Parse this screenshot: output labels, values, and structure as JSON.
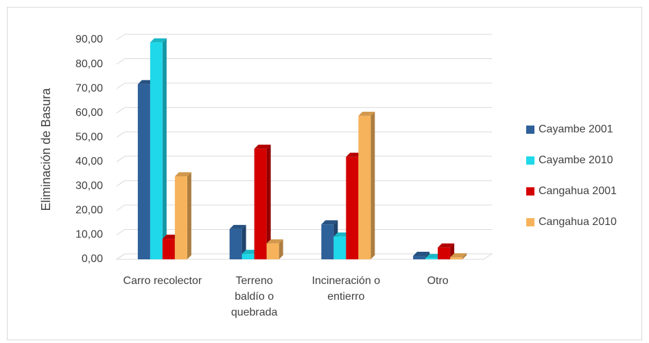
{
  "chart_data": {
    "type": "bar3d",
    "y_label": "Eliminación de Basura",
    "categories": [
      "Carro recolector",
      "Terreno baldío o quebrada",
      "Incineración o entierro",
      "Otro"
    ],
    "series": [
      {
        "name": "Cayambe 2001",
        "color": "#2e6099",
        "values": [
          71.8,
          12.4,
          14.3,
          1.4
        ]
      },
      {
        "name": "Cayambe 2010",
        "color": "#1fd8ea",
        "values": [
          88.9,
          2.2,
          9.3,
          0.5
        ]
      },
      {
        "name": "Cangahua 2001",
        "color": "#d40000",
        "values": [
          8.4,
          45.3,
          42.0,
          4.8
        ]
      },
      {
        "name": "Cangahua 2010",
        "color": "#f7b35b",
        "values": [
          34.0,
          6.5,
          58.8,
          0.8
        ]
      }
    ],
    "ylim": [
      0,
      90
    ],
    "yticks": [
      {
        "value": 0,
        "label": "0,00"
      },
      {
        "value": 10,
        "label": "10,00"
      },
      {
        "value": 20,
        "label": "20,00"
      },
      {
        "value": 30,
        "label": "30,00"
      },
      {
        "value": 40,
        "label": "40,00"
      },
      {
        "value": 50,
        "label": "50,00"
      },
      {
        "value": 60,
        "label": "60,00"
      },
      {
        "value": 70,
        "label": "70,00"
      },
      {
        "value": 80,
        "label": "80,00"
      },
      {
        "value": 90,
        "label": "90,00"
      }
    ],
    "grid": true,
    "legend": "right"
  }
}
